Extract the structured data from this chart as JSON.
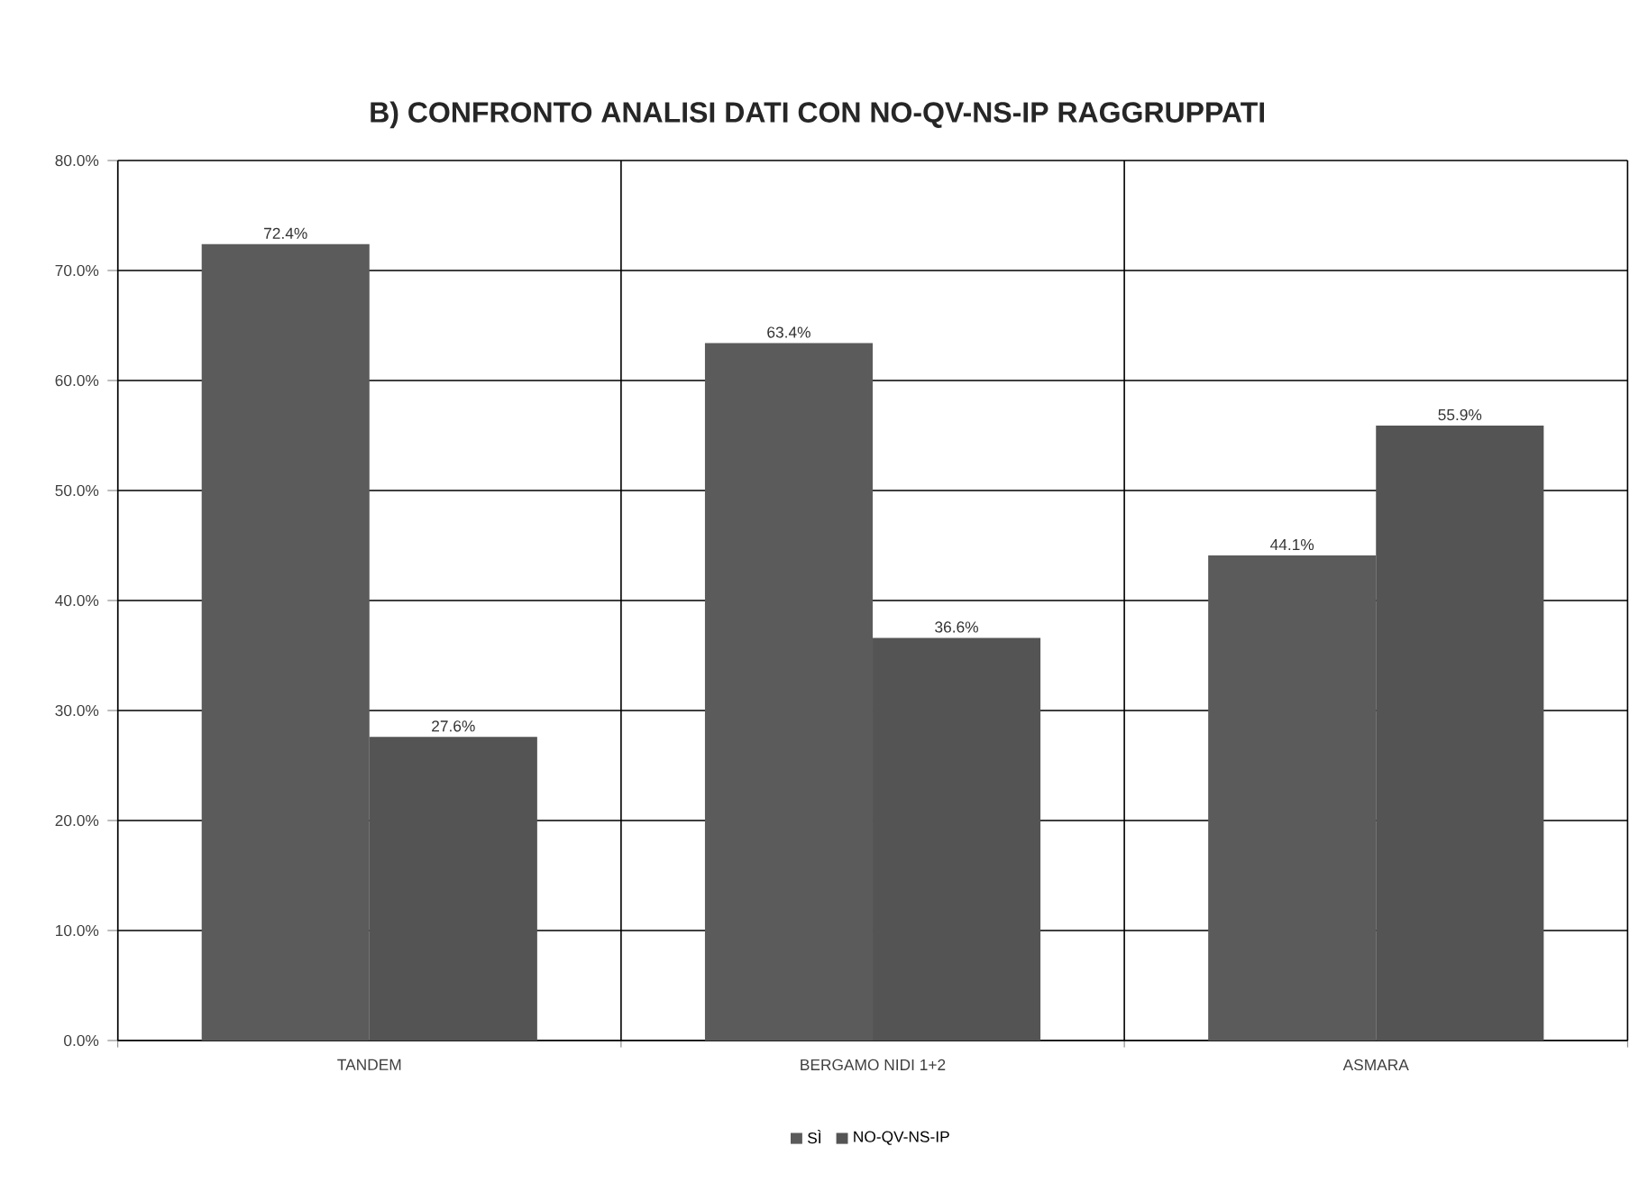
{
  "chart_data": {
    "type": "bar",
    "title": "B)  CONFRONTO ANALISI DATI CON  NO-QV-NS-IP  RAGGRUPPATI",
    "categories": [
      "TANDEM",
      "BERGAMO NIDI 1+2",
      "ASMARA"
    ],
    "series": [
      {
        "name": "SÌ",
        "color": "#5b5b5b",
        "values": [
          72.4,
          63.4,
          44.1
        ],
        "value_labels": [
          "72.4%",
          "63.4%",
          "44.1%"
        ]
      },
      {
        "name": "NO-QV-NS-IP",
        "color": "#545454",
        "values": [
          27.6,
          36.6,
          55.9
        ],
        "value_labels": [
          "27.6%",
          "36.6%",
          "55.9%"
        ]
      }
    ],
    "ylim": [
      0,
      80
    ],
    "yticks": [
      {
        "value": 0,
        "label": "0.0%"
      },
      {
        "value": 10,
        "label": "10.0%"
      },
      {
        "value": 20,
        "label": "20.0%"
      },
      {
        "value": 30,
        "label": "30.0%"
      },
      {
        "value": 40,
        "label": "40.0%"
      },
      {
        "value": 50,
        "label": "50.0%"
      },
      {
        "value": 60,
        "label": "60.0%"
      },
      {
        "value": 70,
        "label": "70.0%"
      },
      {
        "value": 80,
        "label": "80.0%"
      }
    ],
    "grid": true,
    "legend": "bottom"
  }
}
